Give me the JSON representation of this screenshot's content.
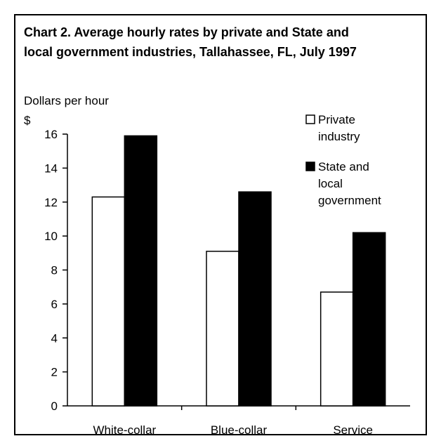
{
  "chart_data": {
    "type": "bar",
    "title_lines": [
      "Chart 2. Average hourly rates by private and State and",
      "local government industries, Tallahassee, FL, July 1997"
    ],
    "ylabel": "Dollars per hour",
    "y_unit": "$",
    "categories": [
      "White-collar",
      "Blue-collar",
      "Service"
    ],
    "series": [
      {
        "name": "Private industry",
        "values": [
          12.3,
          9.1,
          6.7
        ],
        "color": "#ffffff"
      },
      {
        "name": "State and local government",
        "values": [
          15.9,
          12.6,
          10.2
        ],
        "color": "#000000"
      }
    ],
    "legend_lines": [
      [
        "Private",
        "industry"
      ],
      [
        "State and",
        "local",
        "government"
      ]
    ],
    "ylim": [
      0,
      16
    ],
    "yticks": [
      "0",
      "2",
      "4",
      "6",
      "8",
      "10",
      "12",
      "14",
      "16"
    ],
    "legend_position": "top-right",
    "grid": false
  }
}
